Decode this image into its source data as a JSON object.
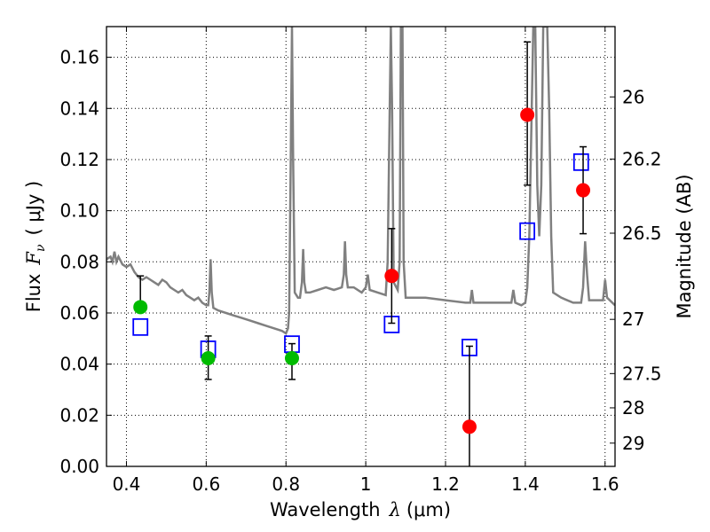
{
  "chart_data": {
    "type": "scatter",
    "xlabel_text": "Wavelength",
    "xlabel_math": "λ",
    "xlabel_unit": "(μm)",
    "ylabel_text": "Flux",
    "ylabel_math": "F",
    "ylabel_math_sub": "ν",
    "ylabel_unit": "( μJy )",
    "y2label": "Magnitude (AB)",
    "xlim": [
      0.35,
      1.625
    ],
    "ylim": [
      0,
      0.172
    ],
    "grid": true,
    "x_ticks": [
      0.4,
      0.6,
      0.8,
      1.0,
      1.2,
      1.4,
      1.6
    ],
    "x_tick_labels": [
      "0.4",
      "0.6",
      "0.8",
      "1",
      "1.2",
      "1.4",
      "1.6"
    ],
    "y_ticks": [
      0,
      0.02,
      0.04,
      0.06,
      0.08,
      0.1,
      0.12,
      0.14,
      0.16
    ],
    "y_tick_labels": [
      "0.00",
      "0.02",
      "0.04",
      "0.06",
      "0.08",
      "0.10",
      "0.12",
      "0.14",
      "0.16"
    ],
    "y2_ticks": [
      {
        "label": "26",
        "flux": 0.1445
      },
      {
        "label": "26.2",
        "flux": 0.1202
      },
      {
        "label": "26.5",
        "flux": 0.0912
      },
      {
        "label": "27",
        "flux": 0.0575
      },
      {
        "label": "27.5",
        "flux": 0.0363
      },
      {
        "label": "28",
        "flux": 0.0229
      },
      {
        "label": "29",
        "flux": 0.0091
      }
    ],
    "colors": {
      "spectrum": "#808080",
      "model_photometry": "#0000ff",
      "non_detection": "#00bb00",
      "detection": "#ff0000",
      "error_bar": "#000000"
    },
    "spectrum": [
      [
        0.35,
        0.081
      ],
      [
        0.36,
        0.082
      ],
      [
        0.365,
        0.08
      ],
      [
        0.37,
        0.084
      ],
      [
        0.375,
        0.08
      ],
      [
        0.38,
        0.082
      ],
      [
        0.39,
        0.079
      ],
      [
        0.4,
        0.078
      ],
      [
        0.41,
        0.079
      ],
      [
        0.42,
        0.076
      ],
      [
        0.43,
        0.074
      ],
      [
        0.44,
        0.073
      ],
      [
        0.45,
        0.074
      ],
      [
        0.46,
        0.073
      ],
      [
        0.47,
        0.072
      ],
      [
        0.48,
        0.071
      ],
      [
        0.49,
        0.073
      ],
      [
        0.5,
        0.072
      ],
      [
        0.51,
        0.07
      ],
      [
        0.52,
        0.069
      ],
      [
        0.53,
        0.068
      ],
      [
        0.54,
        0.069
      ],
      [
        0.55,
        0.067
      ],
      [
        0.56,
        0.066
      ],
      [
        0.57,
        0.065
      ],
      [
        0.58,
        0.066
      ],
      [
        0.59,
        0.064
      ],
      [
        0.6,
        0.063
      ],
      [
        0.605,
        0.063
      ],
      [
        0.608,
        0.068
      ],
      [
        0.611,
        0.081
      ],
      [
        0.614,
        0.068
      ],
      [
        0.618,
        0.062
      ],
      [
        0.63,
        0.061
      ],
      [
        0.65,
        0.06
      ],
      [
        0.67,
        0.059
      ],
      [
        0.69,
        0.058
      ],
      [
        0.71,
        0.057
      ],
      [
        0.73,
        0.056
      ],
      [
        0.75,
        0.055
      ],
      [
        0.77,
        0.054
      ],
      [
        0.79,
        0.053
      ],
      [
        0.8,
        0.052
      ],
      [
        0.805,
        0.054
      ],
      [
        0.808,
        0.06
      ],
      [
        0.812,
        0.12
      ],
      [
        0.815,
        0.172
      ],
      [
        0.818,
        0.12
      ],
      [
        0.822,
        0.068
      ],
      [
        0.83,
        0.066
      ],
      [
        0.835,
        0.066
      ],
      [
        0.84,
        0.072
      ],
      [
        0.843,
        0.085
      ],
      [
        0.846,
        0.072
      ],
      [
        0.85,
        0.068
      ],
      [
        0.86,
        0.068
      ],
      [
        0.88,
        0.069
      ],
      [
        0.9,
        0.07
      ],
      [
        0.92,
        0.069
      ],
      [
        0.94,
        0.07
      ],
      [
        0.945,
        0.075
      ],
      [
        0.948,
        0.088
      ],
      [
        0.951,
        0.075
      ],
      [
        0.955,
        0.07
      ],
      [
        0.97,
        0.07
      ],
      [
        0.99,
        0.068
      ],
      [
        1.0,
        0.07
      ],
      [
        1.005,
        0.075
      ],
      [
        1.01,
        0.069
      ],
      [
        1.03,
        0.068
      ],
      [
        1.05,
        0.067
      ],
      [
        1.055,
        0.08
      ],
      [
        1.06,
        0.14
      ],
      [
        1.063,
        0.172
      ],
      [
        1.066,
        0.14
      ],
      [
        1.07,
        0.072
      ],
      [
        1.08,
        0.069
      ],
      [
        1.085,
        0.08
      ],
      [
        1.088,
        0.172
      ],
      [
        1.092,
        0.172
      ],
      [
        1.095,
        0.08
      ],
      [
        1.1,
        0.066
      ],
      [
        1.15,
        0.066
      ],
      [
        1.2,
        0.065
      ],
      [
        1.25,
        0.064
      ],
      [
        1.262,
        0.064
      ],
      [
        1.266,
        0.069
      ],
      [
        1.27,
        0.064
      ],
      [
        1.3,
        0.064
      ],
      [
        1.35,
        0.064
      ],
      [
        1.365,
        0.064
      ],
      [
        1.37,
        0.069
      ],
      [
        1.375,
        0.064
      ],
      [
        1.39,
        0.063
      ],
      [
        1.4,
        0.064
      ],
      [
        1.405,
        0.07
      ],
      [
        1.41,
        0.09
      ],
      [
        1.415,
        0.13
      ],
      [
        1.42,
        0.172
      ],
      [
        1.425,
        0.172
      ],
      [
        1.43,
        0.11
      ],
      [
        1.435,
        0.09
      ],
      [
        1.44,
        0.11
      ],
      [
        1.445,
        0.172
      ],
      [
        1.455,
        0.172
      ],
      [
        1.46,
        0.14
      ],
      [
        1.465,
        0.09
      ],
      [
        1.47,
        0.068
      ],
      [
        1.49,
        0.066
      ],
      [
        1.52,
        0.064
      ],
      [
        1.54,
        0.064
      ],
      [
        1.545,
        0.07
      ],
      [
        1.55,
        0.088
      ],
      [
        1.555,
        0.075
      ],
      [
        1.56,
        0.065
      ],
      [
        1.58,
        0.065
      ],
      [
        1.595,
        0.065
      ],
      [
        1.6,
        0.073
      ],
      [
        1.605,
        0.066
      ],
      [
        1.625,
        0.063
      ]
    ],
    "model_photometry": [
      {
        "x": 0.435,
        "y": 0.0545
      },
      {
        "x": 0.605,
        "y": 0.0458
      },
      {
        "x": 0.815,
        "y": 0.0478
      },
      {
        "x": 1.065,
        "y": 0.0555
      },
      {
        "x": 1.26,
        "y": 0.0465
      },
      {
        "x": 1.405,
        "y": 0.092
      },
      {
        "x": 1.54,
        "y": 0.119
      }
    ],
    "non_detections": [
      {
        "x": 0.435,
        "y": 0.0623,
        "yerr_low": 0.0623,
        "yerr_high": 0.0745
      },
      {
        "x": 0.605,
        "y": 0.0423,
        "yerr_low": 0.034,
        "yerr_high": 0.051
      },
      {
        "x": 0.815,
        "y": 0.0423,
        "yerr_low": 0.034,
        "yerr_high": 0.048
      }
    ],
    "detections": [
      {
        "x": 1.065,
        "y": 0.0745,
        "yerr_low": 0.056,
        "yerr_high": 0.093
      },
      {
        "x": 1.26,
        "y": 0.0155,
        "yerr_low": 0.0,
        "yerr_high": 0.047
      },
      {
        "x": 1.405,
        "y": 0.1375,
        "yerr_low": 0.11,
        "yerr_high": 0.166
      },
      {
        "x": 1.545,
        "y": 0.108,
        "yerr_low": 0.091,
        "yerr_high": 0.125
      }
    ]
  }
}
